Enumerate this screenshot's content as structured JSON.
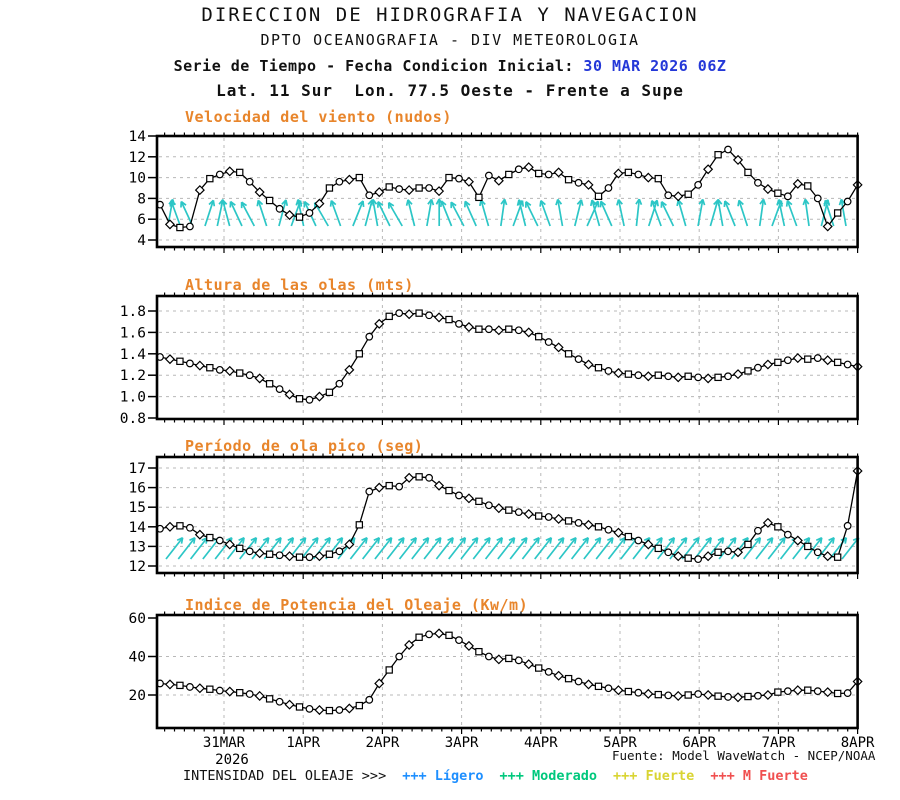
{
  "header": {
    "line1": "DIRECCION DE HIDROGRAFIA Y NAVEGACION",
    "line2": "DPTO OCEANOGRAFIA - DIV METEOROLOGIA",
    "series_label": "Serie de Tiempo - Fecha Condicion Inicial: ",
    "initial_date": "30 MAR 2026 06Z",
    "location": "Lat. 11 Sur  Lon. 77.5 Oeste - Frente a Supe"
  },
  "source": "Fuente: Model WaveWatch - NCEP/NOAA",
  "legend": {
    "label": "INTENSIDAD DEL OLEAJE >>>",
    "items": [
      {
        "label": "+++ Lígero",
        "color": "#1E8FFF"
      },
      {
        "label": "+++ Moderado",
        "color": "#00C87D"
      },
      {
        "label": "+++ Fuerte",
        "color": "#D9D432"
      },
      {
        "label": "+++ M Fuerte",
        "color": "#F05050"
      }
    ]
  },
  "axis": {
    "xlabels": [
      "31MAR",
      "1APR",
      "2APR",
      "3APR",
      "4APR",
      "5APR",
      "6APR",
      "7APR",
      "8APR"
    ],
    "year": "2026"
  },
  "colors": {
    "title_orange": "#E8852B",
    "date_blue": "#2438D8",
    "arrow_cyan": "#2CC6C6",
    "grid": "#B8B8B8"
  },
  "chart_data": [
    {
      "type": "line",
      "title": "Velocidad del viento (nudos)",
      "unit": "nudos",
      "x_start": "30 MAR 2026 06Z",
      "x_step_hours": 3,
      "ylim": [
        3.3,
        14
      ],
      "yticks": [
        "4",
        "6",
        "8",
        "10",
        "12",
        "14"
      ],
      "values": [
        7.4,
        5.5,
        5.2,
        5.3,
        8.8,
        9.9,
        10.3,
        10.6,
        10.5,
        9.6,
        8.6,
        7.8,
        7.0,
        6.4,
        6.2,
        6.6,
        7.5,
        9.0,
        9.6,
        9.8,
        10.0,
        8.3,
        8.6,
        9.1,
        8.9,
        8.8,
        9.0,
        9.0,
        8.7,
        10.0,
        9.9,
        9.6,
        8.1,
        10.2,
        9.7,
        10.3,
        10.8,
        11.0,
        10.4,
        10.3,
        10.5,
        9.8,
        9.5,
        9.3,
        8.2,
        9.0,
        10.4,
        10.5,
        10.3,
        10.0,
        9.9,
        8.3,
        8.2,
        8.4,
        9.3,
        10.8,
        12.2,
        12.7,
        11.7,
        10.5,
        9.5,
        8.9,
        8.5,
        8.2,
        9.4,
        9.2,
        8.0,
        5.3,
        6.6,
        7.7,
        9.3
      ],
      "wind_arrows": {
        "color": "#2CC6C6",
        "angles_deg": [
          10,
          -20,
          -25,
          18,
          12,
          -15,
          -25,
          -28,
          -18,
          15,
          20,
          -12,
          -25,
          -30,
          -20,
          22,
          15,
          -10,
          -26,
          -30,
          -14,
          10,
          0,
          -22,
          -28,
          -24,
          -16,
          8,
          20,
          -14,
          -26,
          -20,
          -10,
          14,
          24,
          -16,
          -24,
          -12,
          6,
          18,
          -20,
          -26,
          -16,
          10,
          16,
          -10,
          -22,
          -18,
          8,
          20,
          -12,
          -20,
          -8,
          14,
          -18,
          -10
        ]
      }
    },
    {
      "type": "line",
      "title": "Altura de las olas (mts)",
      "unit": "mts",
      "x_start": "30 MAR 2026 06Z",
      "x_step_hours": 3,
      "ylim": [
        0.73,
        1.94
      ],
      "yticks": [
        "0.8",
        "1.0",
        "1.2",
        "1.4",
        "1.6",
        "1.8"
      ],
      "values": [
        1.37,
        1.35,
        1.33,
        1.31,
        1.29,
        1.27,
        1.25,
        1.24,
        1.22,
        1.2,
        1.17,
        1.12,
        1.07,
        1.02,
        0.98,
        0.97,
        1.0,
        1.04,
        1.12,
        1.25,
        1.4,
        1.56,
        1.68,
        1.75,
        1.78,
        1.77,
        1.78,
        1.76,
        1.74,
        1.72,
        1.68,
        1.65,
        1.63,
        1.63,
        1.62,
        1.63,
        1.62,
        1.6,
        1.56,
        1.51,
        1.46,
        1.4,
        1.35,
        1.3,
        1.27,
        1.24,
        1.22,
        1.21,
        1.2,
        1.19,
        1.2,
        1.19,
        1.18,
        1.19,
        1.18,
        1.17,
        1.18,
        1.19,
        1.21,
        1.24,
        1.27,
        1.3,
        1.32,
        1.34,
        1.36,
        1.35,
        1.36,
        1.34,
        1.32,
        1.3,
        1.28
      ]
    },
    {
      "type": "line",
      "title": "Período de ola pico (seg)",
      "unit": "seg",
      "x_start": "30 MAR 2026 06Z",
      "x_step_hours": 3,
      "ylim": [
        11.6,
        17.6
      ],
      "yticks": [
        "12",
        "13",
        "14",
        "15",
        "16",
        "17"
      ],
      "values": [
        13.9,
        14.0,
        14.05,
        13.95,
        13.6,
        13.45,
        13.3,
        13.1,
        12.9,
        12.75,
        12.65,
        12.6,
        12.55,
        12.5,
        12.45,
        12.45,
        12.5,
        12.6,
        12.75,
        13.1,
        14.1,
        15.8,
        16.0,
        16.1,
        16.05,
        16.5,
        16.55,
        16.5,
        16.1,
        15.85,
        15.6,
        15.45,
        15.3,
        15.1,
        14.95,
        14.85,
        14.75,
        14.65,
        14.55,
        14.5,
        14.4,
        14.3,
        14.2,
        14.1,
        14.0,
        13.85,
        13.7,
        13.5,
        13.3,
        13.1,
        12.9,
        12.7,
        12.5,
        12.4,
        12.35,
        12.5,
        12.7,
        12.75,
        12.7,
        13.1,
        13.8,
        14.2,
        14.0,
        13.6,
        13.3,
        13.0,
        12.7,
        12.5,
        12.45,
        14.05,
        16.85
      ],
      "swell_arrows": {
        "color": "#2CC6C6",
        "angle_deg": 38,
        "count": 56
      }
    },
    {
      "type": "line",
      "title": "Indice de Potencia del Oleaje (Kw/m)",
      "unit": "Kw/m",
      "x_start": "30 MAR 2026 06Z",
      "x_step_hours": 3,
      "ylim": [
        2.9,
        61.6
      ],
      "yticks": [
        "20",
        "40",
        "60"
      ],
      "values": [
        26,
        25.5,
        25,
        24.2,
        23.5,
        23,
        22.3,
        21.8,
        21.2,
        20.5,
        19.5,
        18,
        16.5,
        15,
        13.8,
        12.8,
        12.2,
        11.9,
        12.2,
        13,
        14.5,
        17.5,
        26,
        33,
        40,
        46,
        50,
        51.5,
        52,
        51,
        48.5,
        45.5,
        42.5,
        40,
        38.5,
        39,
        38,
        36,
        34,
        32,
        30,
        28.5,
        27,
        25.5,
        24.5,
        23.5,
        22.5,
        21.8,
        21.2,
        20.6,
        20.2,
        19.8,
        19.5,
        20,
        20.5,
        20,
        19.4,
        19,
        18.8,
        19.2,
        19.6,
        20,
        21.5,
        22,
        22.5,
        22.5,
        22,
        21.5,
        20.8,
        21,
        27
      ]
    }
  ]
}
